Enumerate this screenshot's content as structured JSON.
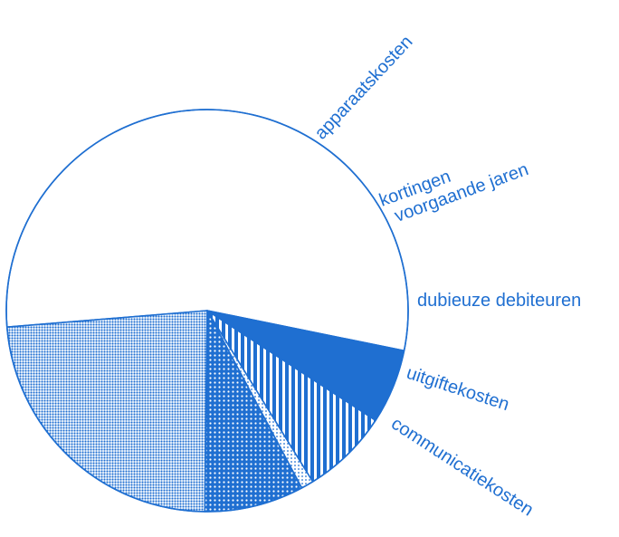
{
  "chart_data": {
    "type": "pie",
    "title": "",
    "slices": [
      {
        "label": "communicatiekosten",
        "value": 54.5,
        "fill": "none"
      },
      {
        "label": "apparaatskosten",
        "value": 23.5,
        "fill": "fine-dots"
      },
      {
        "label": "kortingen voorgaande jaren",
        "value": 8.0,
        "fill": "coarse-dots"
      },
      {
        "label": "",
        "value": 1.0,
        "fill": "light-dots"
      },
      {
        "label": "dubieuze debiteuren",
        "value": 7.0,
        "fill": "vertical-stripes"
      },
      {
        "label": "uitgiftekosten",
        "value": 6.0,
        "fill": "solid"
      }
    ],
    "colors": {
      "accent": "#1f6fd1",
      "background": "#ffffff"
    }
  }
}
